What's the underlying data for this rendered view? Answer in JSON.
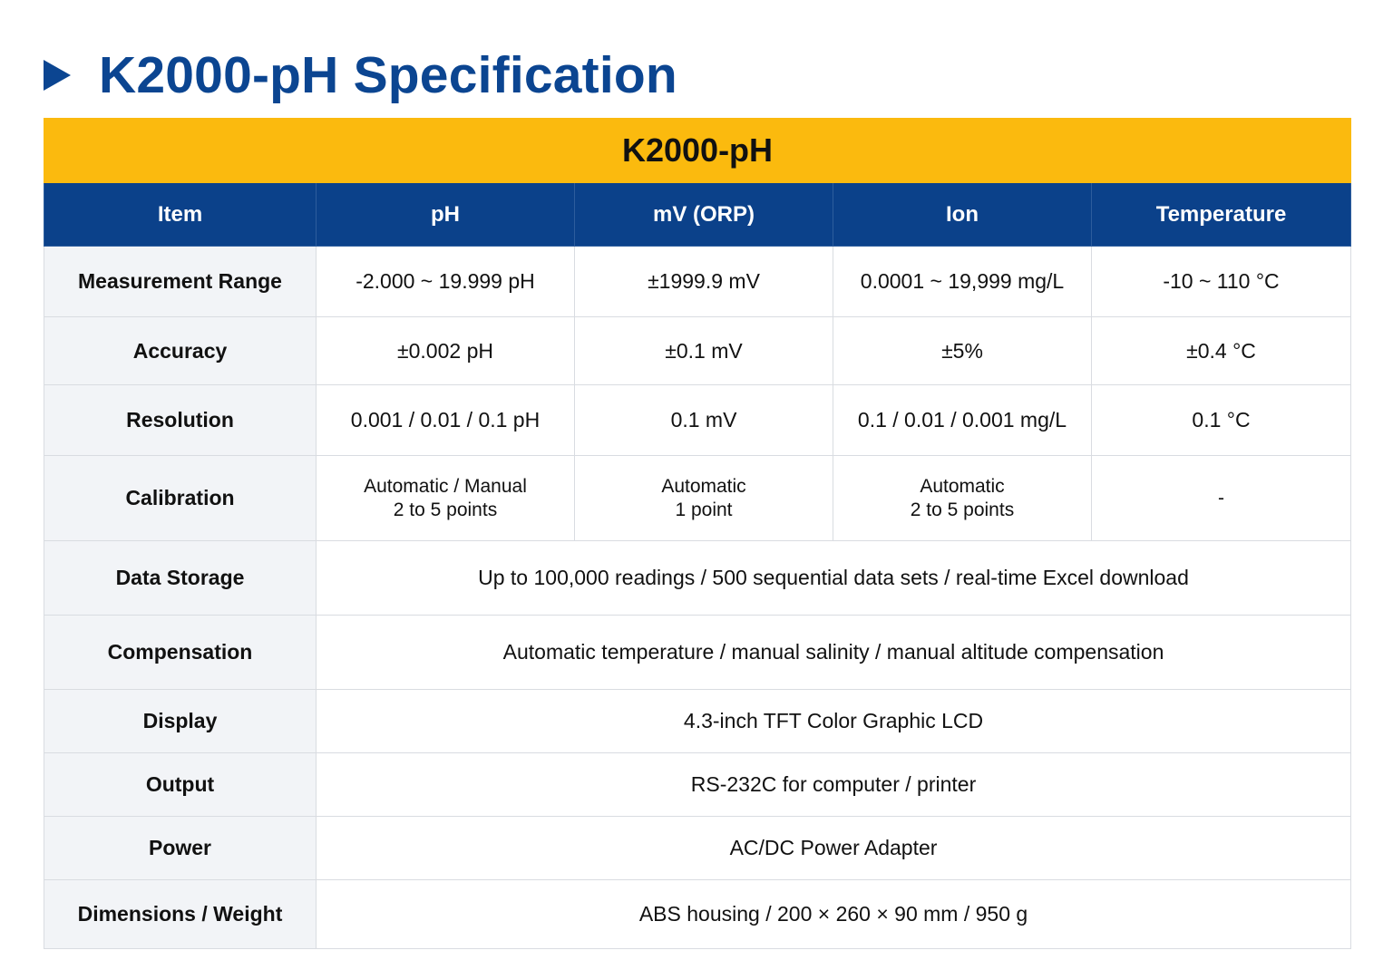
{
  "title": "K2000-pH Specification",
  "table": {
    "band_title": "K2000-pH",
    "headers": [
      "Item",
      "pH",
      "mV (ORP)",
      "Ion",
      "Temperature"
    ],
    "rows": {
      "measurement_range": {
        "label": "Measurement Range",
        "ph": "-2.000 ~ 19.999 pH",
        "mv": "±1999.9 mV",
        "ion": "0.0001 ~ 19,999 mg/L",
        "temp": "-10 ~ 110 °C"
      },
      "accuracy": {
        "label": "Accuracy",
        "ph": "±0.002 pH",
        "mv": "±0.1 mV",
        "ion": "±5%",
        "temp": "±0.4 °C"
      },
      "resolution": {
        "label": "Resolution",
        "ph": "0.001 / 0.01 / 0.1 pH",
        "mv": "0.1 mV",
        "ion": "0.1 / 0.01 / 0.001 mg/L",
        "temp": "0.1 °C"
      },
      "calibration": {
        "label": "Calibration",
        "ph": [
          "Automatic / Manual",
          "2 to 5 points"
        ],
        "mv": [
          "Automatic",
          "1 point"
        ],
        "ion": [
          "Automatic",
          "2 to 5 points"
        ],
        "temp": "-"
      },
      "data_storage": {
        "label": "Data Storage",
        "value": "Up to 100,000 readings / 500 sequential data sets / real-time Excel download"
      },
      "compensation": {
        "label": "Compensation",
        "value": "Automatic temperature / manual salinity / manual altitude compensation"
      },
      "display": {
        "label": "Display",
        "value": "4.3-inch TFT Color Graphic LCD"
      },
      "output": {
        "label": "Output",
        "value": "RS-232C for computer / printer"
      },
      "power": {
        "label": "Power",
        "value": "AC/DC Power Adapter"
      },
      "dimensions": {
        "label": "Dimensions / Weight",
        "value": "ABS housing / 200 × 260 × 90 mm / 950 g"
      }
    }
  },
  "colors": {
    "title_blue": "#0b4591",
    "band_yellow": "#fbba0e",
    "header_blue": "#0b418a",
    "label_bg": "#f2f4f7",
    "border": "#d9dce1"
  }
}
